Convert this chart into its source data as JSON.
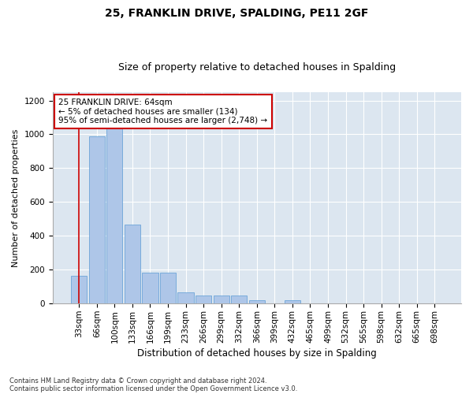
{
  "title1": "25, FRANKLIN DRIVE, SPALDING, PE11 2GF",
  "title2": "Size of property relative to detached houses in Spalding",
  "xlabel": "Distribution of detached houses by size in Spalding",
  "ylabel": "Number of detached properties",
  "annotation_title": "25 FRANKLIN DRIVE: 64sqm",
  "annotation_line1": "← 5% of detached houses are smaller (134)",
  "annotation_line2": "95% of semi-detached houses are larger (2,748) →",
  "footnote1": "Contains HM Land Registry data © Crown copyright and database right 2024.",
  "footnote2": "Contains public sector information licensed under the Open Government Licence v3.0.",
  "categories": [
    "33sqm",
    "66sqm",
    "100sqm",
    "133sqm",
    "166sqm",
    "199sqm",
    "233sqm",
    "266sqm",
    "299sqm",
    "332sqm",
    "366sqm",
    "399sqm",
    "432sqm",
    "465sqm",
    "499sqm",
    "532sqm",
    "565sqm",
    "598sqm",
    "632sqm",
    "665sqm",
    "698sqm"
  ],
  "values": [
    166,
    988,
    1045,
    466,
    183,
    183,
    66,
    50,
    50,
    50,
    18,
    0,
    18,
    0,
    0,
    0,
    0,
    0,
    0,
    0,
    0
  ],
  "bar_color": "#aec6e8",
  "bar_edge_color": "#5b9bd5",
  "highlight_color": "#cc0000",
  "ylim": [
    0,
    1250
  ],
  "yticks": [
    0,
    200,
    400,
    600,
    800,
    1000,
    1200
  ],
  "plot_bg_color": "#dce6f0",
  "fig_bg_color": "#ffffff",
  "annotation_box_color": "#ffffff",
  "annotation_box_edge_color": "#cc0000",
  "title1_fontsize": 10,
  "title2_fontsize": 9,
  "xlabel_fontsize": 8.5,
  "ylabel_fontsize": 8,
  "tick_fontsize": 7.5,
  "annot_fontsize": 7.5,
  "footnote_fontsize": 6
}
